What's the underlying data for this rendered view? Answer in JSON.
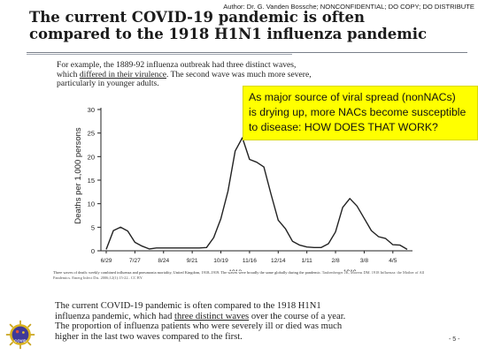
{
  "header": {
    "author": "Author: Dr. G. Vanden Bossche; NONCONFIDENTIAL; DO COPY; DO DISTRIBUTE",
    "title_line1": "The current COVID-19 pandemic is often",
    "title_line2": "compared to the 1918 H1N1 influenza pandemic"
  },
  "intro": {
    "p1": "For example, the 1889-92 influenza outbreak had three distinct waves,",
    "p2a": "which ",
    "p2u": "differed in their virulence",
    "p2b": ". The second wave was much more severe,",
    "p3": "particularly in younger adults."
  },
  "callout": {
    "line1": "As major source of viral spread (nonNACs)",
    "line2": "is drying up, more NACs become susceptible",
    "line3": "to disease: HOW DOES THAT WORK?"
  },
  "chart_data": {
    "type": "line",
    "ylabel": "Deaths per 1,000 persons",
    "ylim": [
      0,
      30
    ],
    "yticks": [
      0,
      5,
      10,
      15,
      20,
      25,
      30
    ],
    "x_tick_labels": [
      "6/29",
      "7/27",
      "8/24",
      "9/21",
      "10/19",
      "11/16",
      "12/14",
      "1/11",
      "2/8",
      "3/8",
      "4/5"
    ],
    "year_labels": [
      "1918",
      "1919"
    ],
    "x": [
      0,
      1,
      2,
      3,
      4,
      5,
      6,
      7,
      8,
      9,
      10,
      11,
      12,
      13,
      14,
      15,
      16,
      17,
      18,
      19,
      20,
      21,
      22,
      23,
      24,
      25,
      26,
      27,
      28,
      29,
      30,
      31,
      32,
      33,
      34,
      35,
      36,
      37,
      38,
      39,
      40,
      41,
      42
    ],
    "values": [
      0.3,
      4.3,
      5.0,
      4.2,
      1.8,
      1.0,
      0.4,
      0.6,
      0.6,
      0.6,
      0.6,
      0.6,
      0.6,
      0.6,
      0.7,
      2.8,
      6.8,
      12.7,
      21.2,
      24.0,
      19.4,
      18.8,
      17.8,
      12.0,
      6.5,
      4.7,
      2.0,
      1.2,
      0.8,
      0.7,
      0.7,
      1.5,
      4.0,
      9.2,
      11.1,
      9.5,
      6.9,
      4.3,
      3.0,
      2.6,
      1.3,
      1.2,
      0.3
    ],
    "grid": false
  },
  "caption": {
    "text": "Three waves of death: weekly combined influenza and pneumonia mortality, United Kingdom, 1918–1919. The waves were broadly the same globally during the pandemic. ",
    "cite": "Taubenberger JK, Morens DM. 1918 Influenza: the Mother of All Pandemics. Emerg Infect Dis. 2006;12(1):15-22.. CC BY"
  },
  "body": {
    "l1": "The current COVID-19 pandemic is often compared to the 1918 H1N1",
    "l2a": "influenza pandemic, which had ",
    "l2u": "three distinct waves",
    "l2b": " over the course of a year.",
    "l3": "The proportion of influenza patients who were severely ill or died was much",
    "l4": "higher in the last two waves compared to the first."
  },
  "footer": {
    "page_number": "- 5 -",
    "logo_text": "COVID"
  }
}
